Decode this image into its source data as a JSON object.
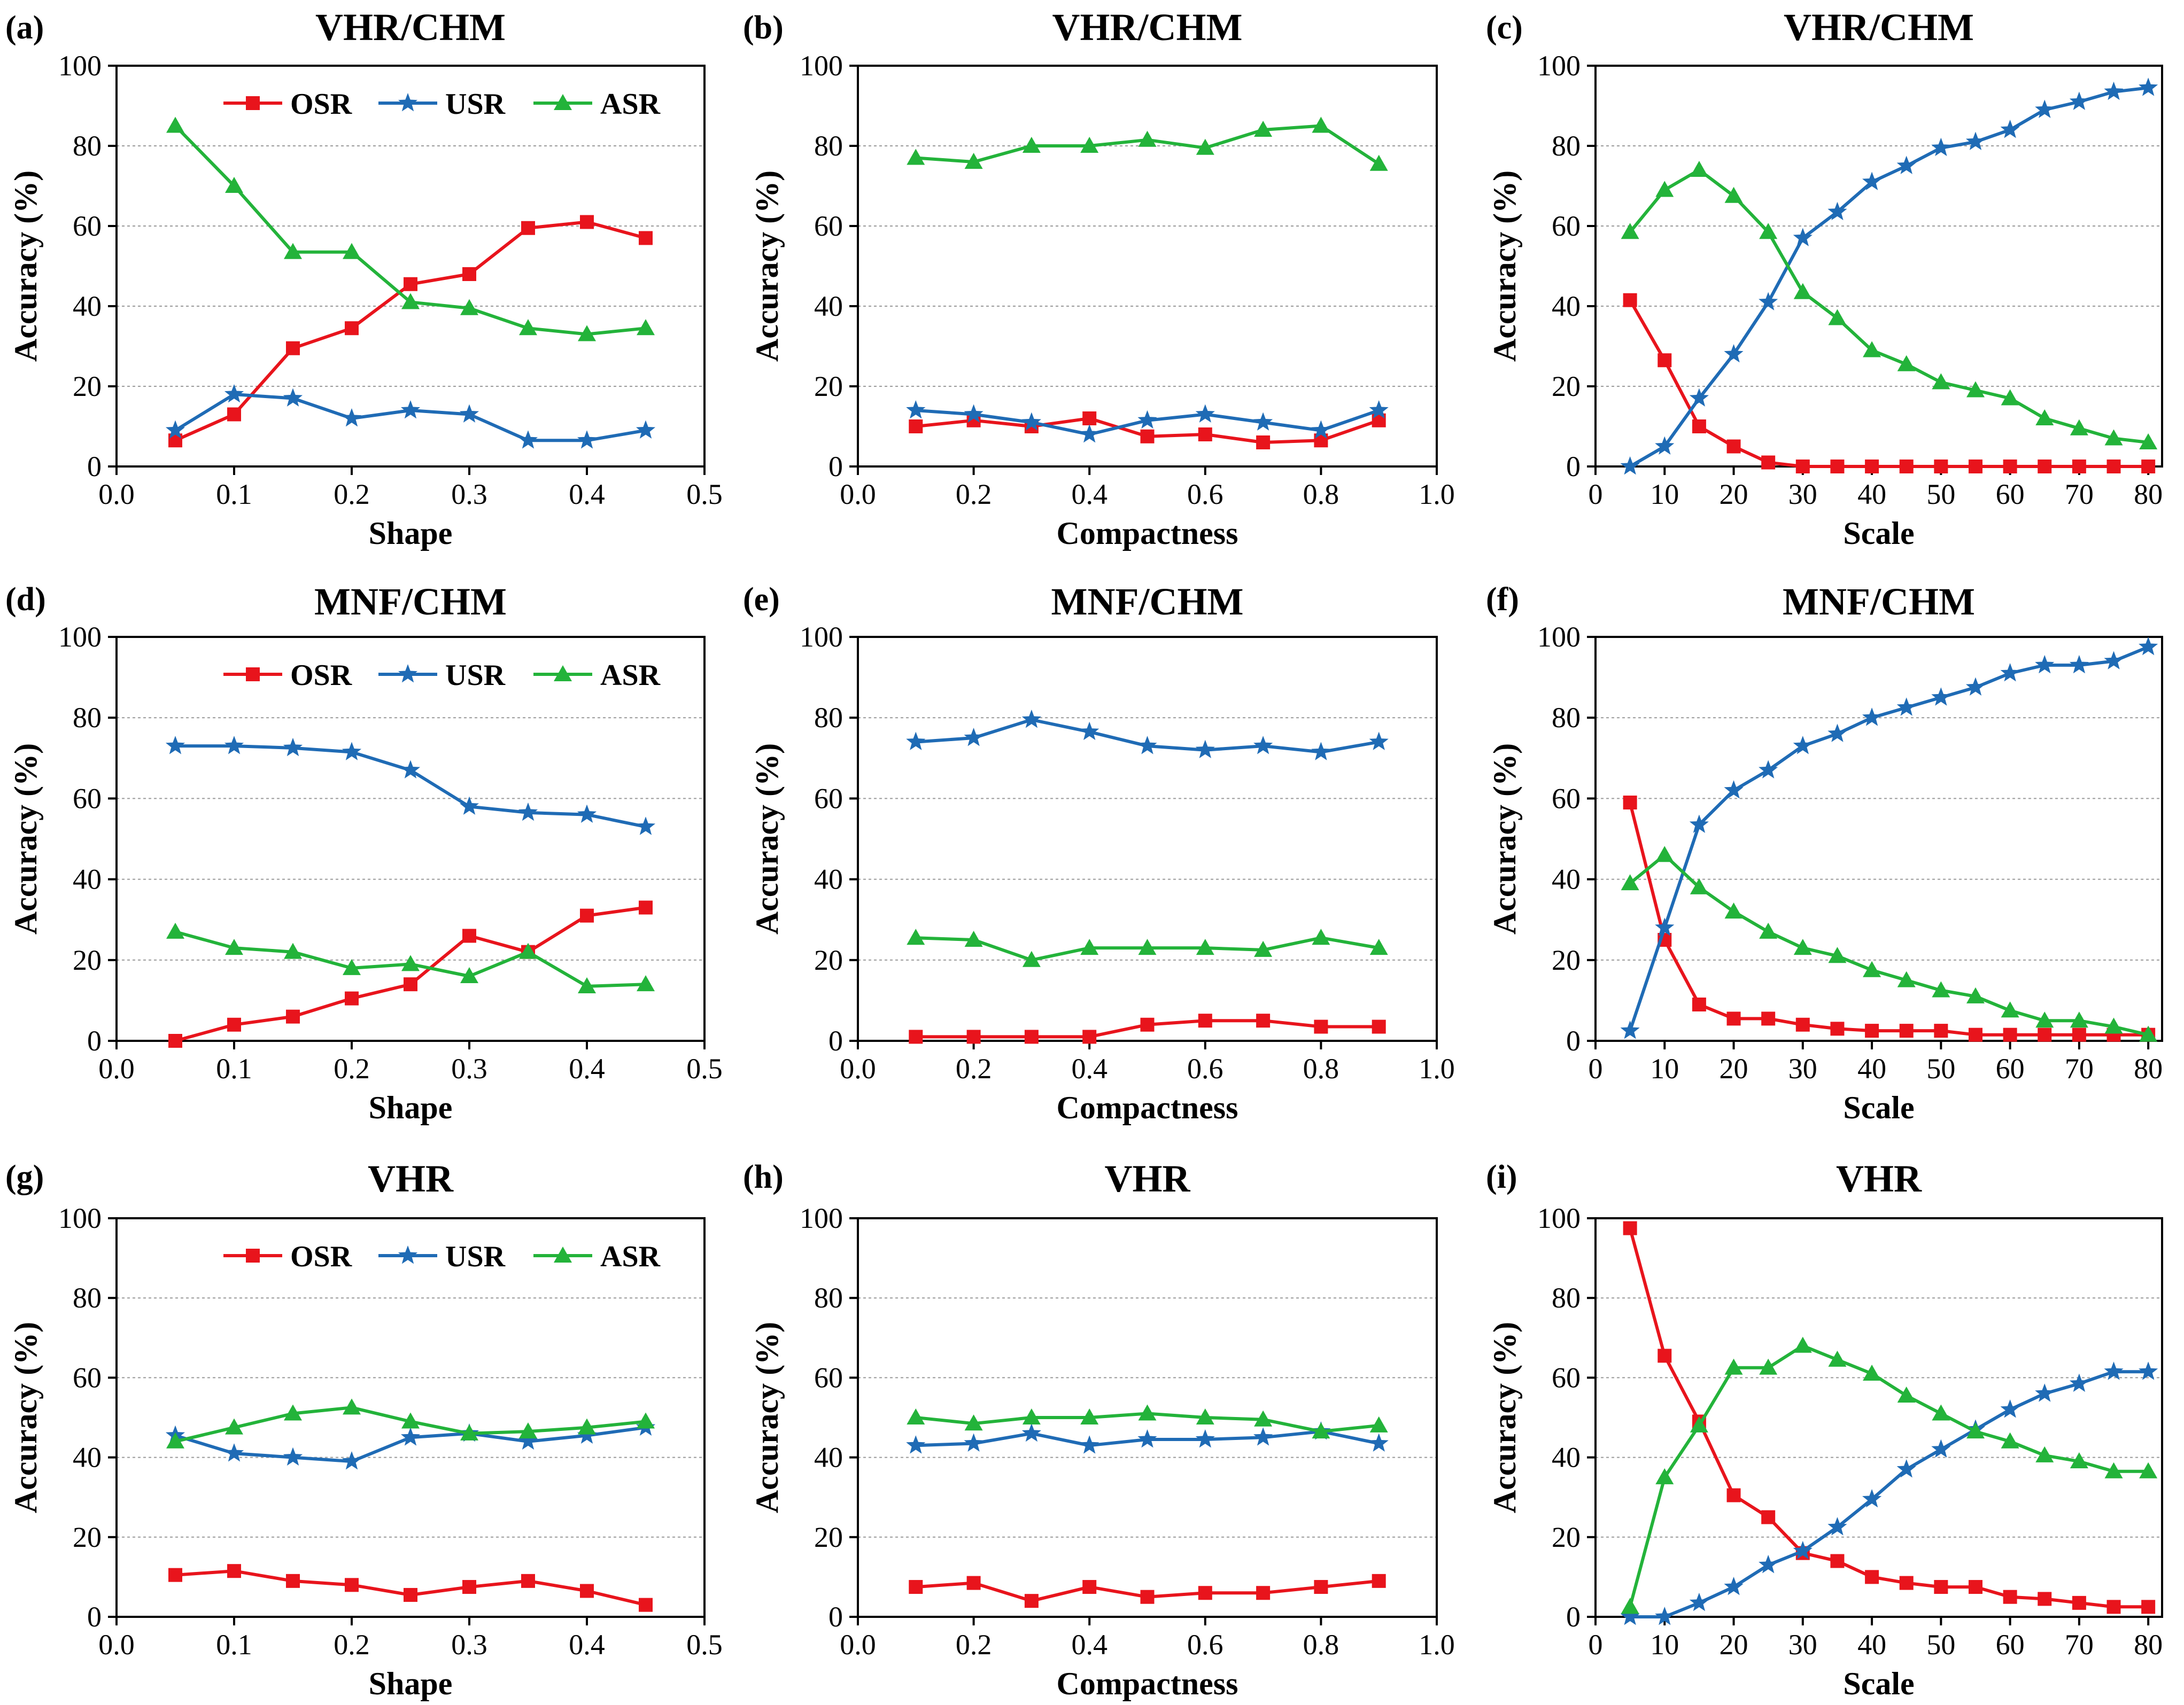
{
  "colors": {
    "OSR": "#e8141c",
    "USR": "#1f6bb5",
    "ASR": "#23b33a",
    "grid": "#9a9a9a",
    "axis": "#000000"
  },
  "legend": {
    "OSR": "OSR",
    "USR": "USR",
    "ASR": "ASR"
  },
  "chart_data": [
    {
      "letter": "(a)",
      "title": "VHR/CHM",
      "type": "line",
      "xlabel": "Shape",
      "ylabel": "Accuracy (%)",
      "xlim": [
        0.0,
        0.5
      ],
      "ylim": [
        0,
        100
      ],
      "xticks": [
        "0.0",
        "0.1",
        "0.2",
        "0.3",
        "0.4",
        "0.5"
      ],
      "yticks": [
        "0",
        "20",
        "40",
        "60",
        "80",
        "100"
      ],
      "show_legend": true,
      "legend_position": "top-right",
      "x": [
        0.05,
        0.1,
        0.15,
        0.2,
        0.25,
        0.3,
        0.35,
        0.4,
        0.45
      ],
      "series": [
        {
          "name": "OSR",
          "values": [
            6.5,
            13,
            29.5,
            34.5,
            45.5,
            48,
            59.5,
            61,
            57
          ]
        },
        {
          "name": "USR",
          "values": [
            9,
            18,
            17,
            12,
            14,
            13,
            6.5,
            6.5,
            9
          ]
        },
        {
          "name": "ASR",
          "values": [
            85,
            70,
            53.5,
            53.5,
            41,
            39.5,
            34.5,
            33,
            34.5
          ]
        }
      ]
    },
    {
      "letter": "(b)",
      "title": "VHR/CHM",
      "type": "line",
      "xlabel": "Compactness",
      "ylabel": "Accuracy (%)",
      "xlim": [
        0.0,
        1.0
      ],
      "ylim": [
        0,
        100
      ],
      "xticks": [
        "0.0",
        "0.2",
        "0.4",
        "0.6",
        "0.8",
        "1.0"
      ],
      "yticks": [
        "0",
        "20",
        "40",
        "60",
        "80",
        "100"
      ],
      "show_legend": false,
      "x": [
        0.1,
        0.2,
        0.3,
        0.4,
        0.5,
        0.6,
        0.7,
        0.8,
        0.9
      ],
      "series": [
        {
          "name": "OSR",
          "values": [
            10,
            11.5,
            10,
            12,
            7.5,
            8,
            6,
            6.5,
            11.5
          ]
        },
        {
          "name": "USR",
          "values": [
            14,
            13,
            11,
            8,
            11.5,
            13,
            11,
            9,
            14
          ]
        },
        {
          "name": "ASR",
          "values": [
            77,
            76,
            80,
            80,
            81.5,
            79.5,
            84,
            85,
            75.5
          ]
        }
      ]
    },
    {
      "letter": "(c)",
      "title": "VHR/CHM",
      "type": "line",
      "xlabel": "Scale",
      "ylabel": "Accuracy (%)",
      "xlim": [
        0,
        82
      ],
      "ylim": [
        0,
        100
      ],
      "xticks": [
        "0",
        "10",
        "20",
        "30",
        "40",
        "50",
        "60",
        "70",
        "80"
      ],
      "yticks": [
        "0",
        "20",
        "40",
        "60",
        "80",
        "100"
      ],
      "show_legend": false,
      "x": [
        5,
        10,
        15,
        20,
        25,
        30,
        35,
        40,
        45,
        50,
        55,
        60,
        65,
        70,
        75,
        80
      ],
      "series": [
        {
          "name": "OSR",
          "values": [
            41.5,
            26.5,
            10,
            5,
            1,
            0,
            0,
            0,
            0,
            0,
            0,
            0,
            0,
            0,
            0,
            0
          ]
        },
        {
          "name": "USR",
          "values": [
            0,
            5,
            17,
            28,
            41,
            57,
            63.5,
            71,
            75,
            79.5,
            81,
            84,
            89,
            91,
            93.5,
            94.5
          ]
        },
        {
          "name": "ASR",
          "values": [
            58.5,
            69,
            74,
            67.5,
            58.5,
            43.5,
            37,
            29,
            25.5,
            21,
            19,
            17,
            12,
            9.5,
            7,
            6
          ]
        }
      ]
    },
    {
      "letter": "(d)",
      "title": "MNF/CHM",
      "type": "line",
      "xlabel": "Shape",
      "ylabel": "Accuracy (%)",
      "xlim": [
        0.0,
        0.5
      ],
      "ylim": [
        0,
        100
      ],
      "xticks": [
        "0.0",
        "0.1",
        "0.2",
        "0.3",
        "0.4",
        "0.5"
      ],
      "yticks": [
        "0",
        "20",
        "40",
        "60",
        "80",
        "100"
      ],
      "show_legend": true,
      "legend_position": "top-right",
      "x": [
        0.05,
        0.1,
        0.15,
        0.2,
        0.25,
        0.3,
        0.35,
        0.4,
        0.45
      ],
      "series": [
        {
          "name": "OSR",
          "values": [
            0,
            4,
            6,
            10.5,
            14,
            26,
            22,
            31,
            33
          ]
        },
        {
          "name": "USR",
          "values": [
            73,
            73,
            72.5,
            71.5,
            67,
            58,
            56.5,
            56,
            53
          ]
        },
        {
          "name": "ASR",
          "values": [
            27,
            23,
            22,
            18,
            19,
            16,
            22,
            13.5,
            14
          ]
        }
      ]
    },
    {
      "letter": "(e)",
      "title": "MNF/CHM",
      "type": "line",
      "xlabel": "Compactness",
      "ylabel": "Accuracy (%)",
      "xlim": [
        0.0,
        1.0
      ],
      "ylim": [
        0,
        100
      ],
      "xticks": [
        "0.0",
        "0.2",
        "0.4",
        "0.6",
        "0.8",
        "1.0"
      ],
      "yticks": [
        "0",
        "20",
        "40",
        "60",
        "80",
        "100"
      ],
      "show_legend": false,
      "x": [
        0.1,
        0.2,
        0.3,
        0.4,
        0.5,
        0.6,
        0.7,
        0.8,
        0.9
      ],
      "series": [
        {
          "name": "OSR",
          "values": [
            1,
            1,
            1,
            1,
            4,
            5,
            5,
            3.5,
            3.5
          ]
        },
        {
          "name": "USR",
          "values": [
            74,
            75,
            79.5,
            76.5,
            73,
            72,
            73,
            71.5,
            74
          ]
        },
        {
          "name": "ASR",
          "values": [
            25.5,
            25,
            20,
            23,
            23,
            23,
            22.5,
            25.5,
            23
          ]
        }
      ]
    },
    {
      "letter": "(f)",
      "title": "MNF/CHM",
      "type": "line",
      "xlabel": "Scale",
      "ylabel": "Accuracy (%)",
      "xlim": [
        0,
        82
      ],
      "ylim": [
        0,
        100
      ],
      "xticks": [
        "0",
        "10",
        "20",
        "30",
        "40",
        "50",
        "60",
        "70",
        "80"
      ],
      "yticks": [
        "0",
        "20",
        "40",
        "60",
        "80",
        "100"
      ],
      "show_legend": false,
      "x": [
        5,
        10,
        15,
        20,
        25,
        30,
        35,
        40,
        45,
        50,
        55,
        60,
        65,
        70,
        75,
        80
      ],
      "series": [
        {
          "name": "OSR",
          "values": [
            59,
            25,
            9,
            5.5,
            5.5,
            4,
            3,
            2.5,
            2.5,
            2.5,
            1.5,
            1.5,
            1.5,
            1.5,
            1.5,
            1.5
          ]
        },
        {
          "name": "USR",
          "values": [
            2.5,
            28,
            53.5,
            62,
            67,
            73,
            76,
            80,
            82.5,
            85,
            87.5,
            91,
            93,
            93,
            94,
            97.5
          ]
        },
        {
          "name": "ASR",
          "values": [
            39,
            46,
            38,
            32,
            27,
            23,
            21,
            17.5,
            15,
            12.5,
            11,
            7.5,
            5,
            5,
            3.5,
            1.5
          ]
        }
      ]
    },
    {
      "letter": "(g)",
      "title": "VHR",
      "type": "line",
      "xlabel": "Shape",
      "ylabel": "Accuracy (%)",
      "xlim": [
        0.0,
        0.5
      ],
      "ylim": [
        0,
        100
      ],
      "xticks": [
        "0.0",
        "0.1",
        "0.2",
        "0.3",
        "0.4",
        "0.5"
      ],
      "yticks": [
        "0",
        "20",
        "40",
        "60",
        "80",
        "100"
      ],
      "show_legend": true,
      "legend_position": "top-right",
      "x": [
        0.05,
        0.1,
        0.15,
        0.2,
        0.25,
        0.3,
        0.35,
        0.4,
        0.45
      ],
      "series": [
        {
          "name": "OSR",
          "values": [
            10.5,
            11.5,
            9,
            8,
            5.5,
            7.5,
            9,
            6.5,
            3
          ]
        },
        {
          "name": "USR",
          "values": [
            45.5,
            41,
            40,
            39,
            45,
            46,
            44,
            45.5,
            47.5
          ]
        },
        {
          "name": "ASR",
          "values": [
            44,
            47.5,
            51,
            52.5,
            49,
            46,
            46.5,
            47.5,
            49
          ]
        }
      ]
    },
    {
      "letter": "(h)",
      "title": "VHR",
      "type": "line",
      "xlabel": "Compactness",
      "ylabel": "Accuracy (%)",
      "xlim": [
        0.0,
        1.0
      ],
      "ylim": [
        0,
        100
      ],
      "xticks": [
        "0.0",
        "0.2",
        "0.4",
        "0.6",
        "0.8",
        "1.0"
      ],
      "yticks": [
        "0",
        "20",
        "40",
        "60",
        "80",
        "100"
      ],
      "show_legend": false,
      "x": [
        0.1,
        0.2,
        0.3,
        0.4,
        0.5,
        0.6,
        0.7,
        0.8,
        0.9
      ],
      "series": [
        {
          "name": "OSR",
          "values": [
            7.5,
            8.5,
            4,
            7.5,
            5,
            6,
            6,
            7.5,
            9
          ]
        },
        {
          "name": "USR",
          "values": [
            43,
            43.5,
            46,
            43,
            44.5,
            44.5,
            45,
            46.5,
            43.5
          ]
        },
        {
          "name": "ASR",
          "values": [
            50,
            48.5,
            50,
            50,
            51,
            50,
            49.5,
            46.5,
            48
          ]
        }
      ]
    },
    {
      "letter": "(i)",
      "title": "VHR",
      "type": "line",
      "xlabel": "Scale",
      "ylabel": "Accuracy (%)",
      "xlim": [
        0,
        82
      ],
      "ylim": [
        0,
        100
      ],
      "xticks": [
        "0",
        "10",
        "20",
        "30",
        "40",
        "50",
        "60",
        "70",
        "80"
      ],
      "yticks": [
        "0",
        "20",
        "40",
        "60",
        "80",
        "100"
      ],
      "show_legend": false,
      "x": [
        5,
        10,
        15,
        20,
        25,
        30,
        35,
        40,
        45,
        50,
        55,
        60,
        65,
        70,
        75,
        80
      ],
      "series": [
        {
          "name": "OSR",
          "values": [
            97.5,
            65.5,
            49,
            30.5,
            25,
            16,
            14,
            10,
            8.5,
            7.5,
            7.5,
            5,
            4.5,
            3.5,
            2.5,
            2.5
          ]
        },
        {
          "name": "USR",
          "values": [
            0,
            0,
            3.5,
            7.5,
            13,
            16.5,
            22.5,
            29.5,
            37,
            42,
            47,
            52,
            56,
            58.5,
            61.5,
            61.5
          ]
        },
        {
          "name": "ASR",
          "values": [
            2.5,
            35,
            48,
            62.5,
            62.5,
            68,
            64.5,
            61,
            55.5,
            51,
            46.5,
            44,
            40.5,
            39,
            36.5,
            36.5
          ]
        }
      ]
    }
  ]
}
